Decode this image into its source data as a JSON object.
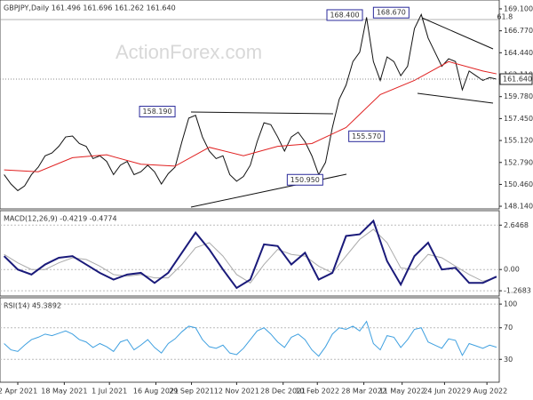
{
  "chart_data": [
    {
      "type": "line",
      "header": "GBPJPY,Daily 161.496 161.696 161.262 161.640",
      "watermark": "ActionForex.com",
      "xlim": [
        -13,
        352
      ],
      "ylim": [
        147.86,
        170.04
      ],
      "yticks": [
        {
          "value": 169.1,
          "label": "169.100"
        },
        {
          "value": 166.77,
          "label": "166.770"
        },
        {
          "value": 164.44,
          "label": "164.440"
        },
        {
          "value": 162.11,
          "label": "162.110"
        },
        {
          "value": 159.78,
          "label": "159.780"
        },
        {
          "value": 157.45,
          "label": "157.450"
        },
        {
          "value": 155.12,
          "label": "155.120"
        },
        {
          "value": 152.79,
          "label": "152.790"
        },
        {
          "value": 150.46,
          "label": "150.460"
        },
        {
          "value": 148.14,
          "label": "148.140"
        }
      ],
      "last_value": {
        "value": 161.64,
        "label": "161.640"
      },
      "series": [
        {
          "color": "#111111",
          "x": [
            -10,
            -5,
            0,
            5,
            10,
            15,
            20,
            25,
            30,
            35,
            40,
            45,
            50,
            55,
            60,
            65,
            70,
            75,
            80,
            85,
            90,
            95,
            100,
            105,
            110,
            115,
            120,
            125,
            130,
            135,
            140,
            145,
            150,
            155,
            160,
            165,
            170,
            175,
            180,
            185,
            190,
            195,
            200,
            205,
            210,
            215,
            220,
            225,
            230,
            235,
            240,
            245,
            250,
            255,
            260,
            265,
            270,
            275,
            280,
            285,
            290,
            295,
            300,
            305,
            310,
            315,
            320,
            325,
            330,
            335,
            340,
            345,
            350
          ],
          "values": [
            151.5,
            150.5,
            149.8,
            150.3,
            151.5,
            152.3,
            153.5,
            153.8,
            154.5,
            155.5,
            155.6,
            154.8,
            154.5,
            153.2,
            153.5,
            152.9,
            151.5,
            152.5,
            152.9,
            151.5,
            151.8,
            152.5,
            151.8,
            150.5,
            151.6,
            152.3,
            155.0,
            157.5,
            157.8,
            155.5,
            154.0,
            153.2,
            153.5,
            151.5,
            150.8,
            151.3,
            152.5,
            155.0,
            157.0,
            156.8,
            155.5,
            154.0,
            155.5,
            156.0,
            155.0,
            153.5,
            151.5,
            152.8,
            156.5,
            159.5,
            161.0,
            163.5,
            164.5,
            168.2,
            163.5,
            161.5,
            164.0,
            163.5,
            162.0,
            163.0,
            167.0,
            168.5,
            166.0,
            164.5,
            163.0,
            163.8,
            163.5,
            160.5,
            162.5,
            162.0,
            161.5,
            161.8,
            161.64
          ]
        },
        {
          "color": "#e02020",
          "x": [
            -10,
            15,
            40,
            65,
            90,
            115,
            140,
            165,
            190,
            215,
            240,
            265,
            290,
            315,
            340,
            350
          ],
          "values": [
            152.0,
            151.8,
            153.3,
            153.6,
            152.6,
            152.4,
            154.4,
            153.5,
            154.5,
            154.8,
            156.5,
            160.0,
            161.5,
            163.5,
            162.5,
            162.2
          ]
        }
      ],
      "annotations": [
        {
          "text": "168.400",
          "x": 239,
          "y": 168.44
        },
        {
          "text": "168.670",
          "x": 273,
          "y": 168.7
        },
        {
          "text": "158.190",
          "x": 102,
          "y": 158.19
        },
        {
          "text": "155.570",
          "x": 255,
          "y": 155.57
        },
        {
          "text": "150.950",
          "x": 210,
          "y": 150.95
        },
        {
          "text": "61.8",
          "x": 349,
          "y": 168.25
        }
      ]
    },
    {
      "type": "line",
      "header": "MACD(12,26,9) -0.4219 -0.4774",
      "xlim": [
        -13,
        352
      ],
      "ylim": [
        -1.58,
        3.51
      ],
      "yticks": [
        2.6468,
        {
          "value": 0,
          "label": "0.00"
        },
        -1.2683
      ],
      "series": [
        {
          "color": "#aaaaaa",
          "x": [
            -10,
            0,
            10,
            20,
            30,
            40,
            50,
            60,
            70,
            80,
            90,
            100,
            110,
            120,
            130,
            140,
            150,
            160,
            170,
            180,
            190,
            200,
            210,
            220,
            230,
            240,
            250,
            260,
            270,
            280,
            290,
            300,
            310,
            320,
            330,
            340,
            350
          ],
          "values": [
            0.9,
            0.4,
            0.0,
            0.0,
            0.4,
            0.7,
            0.6,
            0.2,
            -0.3,
            -0.4,
            -0.3,
            -0.5,
            -0.5,
            0.3,
            1.3,
            1.6,
            0.8,
            -0.3,
            -0.8,
            0.3,
            1.2,
            0.9,
            0.8,
            0.2,
            -0.2,
            0.8,
            1.8,
            2.4,
            1.6,
            0.1,
            0.0,
            0.9,
            0.7,
            0.2,
            -0.3,
            -0.7,
            -0.4774
          ]
        },
        {
          "color": "#1a1a7a",
          "x": [
            -10,
            0,
            10,
            20,
            30,
            40,
            50,
            60,
            70,
            80,
            90,
            100,
            110,
            120,
            130,
            140,
            150,
            160,
            170,
            180,
            190,
            200,
            210,
            220,
            230,
            240,
            250,
            260,
            270,
            280,
            290,
            300,
            310,
            320,
            330,
            340,
            350
          ],
          "values": [
            0.8,
            0.0,
            -0.3,
            0.3,
            0.7,
            0.8,
            0.3,
            -0.2,
            -0.6,
            -0.3,
            -0.2,
            -0.8,
            -0.2,
            1.0,
            2.2,
            1.2,
            0.0,
            -1.1,
            -0.6,
            1.5,
            1.4,
            0.3,
            1.0,
            -0.6,
            -0.2,
            2.0,
            2.1,
            2.9,
            0.5,
            -0.9,
            0.8,
            1.6,
            0.0,
            0.1,
            -0.8,
            -0.8,
            -0.4219
          ]
        }
      ]
    },
    {
      "type": "line",
      "header": "RSI(14) 45.3892",
      "xlim": [
        -13,
        352
      ],
      "ylim": [
        1,
        108
      ],
      "yticks": [
        100,
        70,
        30
      ],
      "xticks": [
        {
          "value": 0,
          "label": "2 Apr 2021"
        },
        {
          "value": 34,
          "label": "18 May 2021"
        },
        {
          "value": 67,
          "label": "1 Jul 2021"
        },
        {
          "value": 101,
          "label": "16 Aug 2021"
        },
        {
          "value": 127,
          "label": "29 Sep 2021"
        },
        {
          "value": 160,
          "label": "12 Nov 2021"
        },
        {
          "value": 194,
          "label": "28 Dec 2021"
        },
        {
          "value": 219,
          "label": "10 Feb 2022"
        },
        {
          "value": 253,
          "label": "28 Mar 2022"
        },
        {
          "value": 281,
          "label": "11 May 2022"
        },
        {
          "value": 312,
          "label": "24 Jun 2022"
        },
        {
          "value": 343,
          "label": "9 Aug 2022"
        }
      ],
      "series": [
        {
          "color": "#3fa0e0",
          "x": [
            -10,
            -5,
            0,
            5,
            10,
            15,
            20,
            25,
            30,
            35,
            40,
            45,
            50,
            55,
            60,
            65,
            70,
            75,
            80,
            85,
            90,
            95,
            100,
            105,
            110,
            115,
            120,
            125,
            130,
            135,
            140,
            145,
            150,
            155,
            160,
            165,
            170,
            175,
            180,
            185,
            190,
            195,
            200,
            205,
            210,
            215,
            220,
            225,
            230,
            235,
            240,
            245,
            250,
            255,
            260,
            265,
            270,
            275,
            280,
            285,
            290,
            295,
            300,
            305,
            310,
            315,
            320,
            325,
            330,
            335,
            340,
            345,
            350
          ],
          "values": [
            50,
            42,
            40,
            48,
            55,
            58,
            62,
            60,
            63,
            66,
            62,
            55,
            52,
            45,
            50,
            46,
            40,
            52,
            55,
            42,
            48,
            55,
            45,
            38,
            50,
            56,
            65,
            72,
            70,
            55,
            46,
            44,
            48,
            38,
            36,
            44,
            55,
            66,
            70,
            62,
            52,
            45,
            58,
            62,
            55,
            42,
            34,
            46,
            62,
            70,
            68,
            72,
            66,
            78,
            50,
            42,
            60,
            58,
            45,
            55,
            68,
            70,
            52,
            48,
            44,
            56,
            54,
            35,
            50,
            47,
            44,
            48,
            45.3892
          ]
        }
      ]
    }
  ]
}
